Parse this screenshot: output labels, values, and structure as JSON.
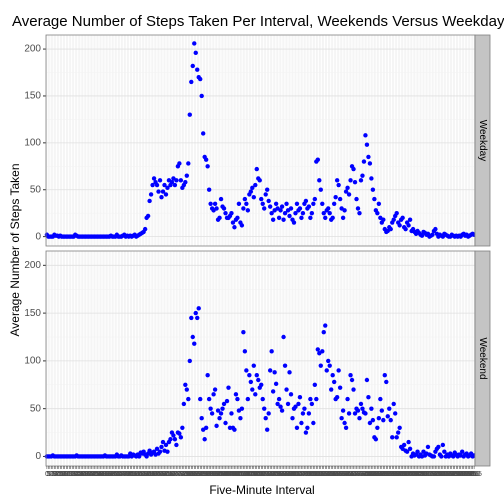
{
  "chart_data": {
    "type": "scatter",
    "title": "Average Number of Steps Taken Per Interval, Weekends Versus Weekdays",
    "x_label": "Five-Minute Interval",
    "y_label": "Average Number of Steps Taken",
    "categories": [
      0,
      5,
      10,
      15,
      20,
      25,
      30,
      35,
      40,
      45,
      50,
      55,
      100,
      105,
      110,
      115,
      120,
      125,
      130,
      135,
      140,
      145,
      150,
      155,
      200,
      205,
      210,
      215,
      220,
      225,
      230,
      235,
      240,
      245,
      250,
      255,
      300,
      305,
      310,
      315,
      320,
      325,
      330,
      335,
      340,
      345,
      350,
      355,
      400,
      405,
      410,
      415,
      420,
      425,
      430,
      435,
      440,
      445,
      450,
      455,
      500,
      505,
      510,
      515,
      520,
      525,
      530,
      535,
      540,
      545,
      550,
      555,
      600,
      605,
      610,
      615,
      620,
      625,
      630,
      635,
      640,
      645,
      650,
      655,
      700,
      705,
      710,
      715,
      720,
      725,
      730,
      735,
      740,
      745,
      750,
      755,
      800,
      805,
      810,
      815,
      820,
      825,
      830,
      835,
      840,
      845,
      850,
      855,
      900,
      905,
      910,
      915,
      920,
      925,
      930,
      935,
      940,
      945,
      950,
      955,
      1000,
      1005,
      1010,
      1015,
      1020,
      1025,
      1030,
      1035,
      1040,
      1045,
      1050,
      1055,
      1100,
      1105,
      1110,
      1115,
      1120,
      1125,
      1130,
      1135,
      1140,
      1145,
      1150,
      1155,
      1200,
      1205,
      1210,
      1215,
      1220,
      1225,
      1230,
      1235,
      1240,
      1245,
      1250,
      1255,
      1300,
      1305,
      1310,
      1315,
      1320,
      1325,
      1330,
      1335,
      1340,
      1345,
      1350,
      1355,
      1400,
      1405,
      1410,
      1415,
      1420,
      1425,
      1430,
      1435,
      1440,
      1445,
      1450,
      1455,
      1500,
      1505,
      1510,
      1515,
      1520,
      1525,
      1530,
      1535,
      1540,
      1545,
      1550,
      1555,
      1600,
      1605,
      1610,
      1615,
      1620,
      1625,
      1630,
      1635,
      1640,
      1645,
      1650,
      1655,
      1700,
      1705,
      1710,
      1715,
      1720,
      1725,
      1730,
      1735,
      1740,
      1745,
      1750,
      1755,
      1800,
      1805,
      1810,
      1815,
      1820,
      1825,
      1830,
      1835,
      1840,
      1845,
      1850,
      1855,
      1900,
      1905,
      1910,
      1915,
      1920,
      1925,
      1930,
      1935,
      1940,
      1945,
      1950,
      1955,
      2000,
      2005,
      2010,
      2015,
      2020,
      2025,
      2030,
      2035,
      2040,
      2045,
      2050,
      2055,
      2100,
      2105,
      2110,
      2115,
      2120,
      2125,
      2130,
      2135,
      2140,
      2145,
      2150,
      2155,
      2200,
      2205,
      2210,
      2215,
      2220,
      2225,
      2230,
      2235,
      2240,
      2245,
      2250,
      2255,
      2300,
      2305,
      2310,
      2315,
      2320,
      2325,
      2330,
      2335,
      2340,
      2345,
      2350,
      2355
    ],
    "series": [
      {
        "name": "Weekday",
        "color": "#0000ff",
        "values": [
          2,
          0,
          0,
          0,
          0,
          2,
          1,
          1,
          0,
          1,
          0,
          0,
          0,
          0,
          0,
          0,
          0,
          0,
          0,
          2,
          1,
          0,
          0,
          0,
          0,
          0,
          0,
          0,
          0,
          0,
          0,
          0,
          0,
          0,
          0,
          0,
          0,
          0,
          0,
          0,
          0,
          0,
          0,
          1,
          0,
          0,
          0,
          2,
          0,
          0,
          0,
          1,
          2,
          0,
          1,
          0,
          1,
          0,
          1,
          2,
          0,
          1,
          2,
          3,
          4,
          5,
          8,
          20,
          22,
          38,
          45,
          55,
          62,
          58,
          55,
          48,
          60,
          42,
          48,
          55,
          45,
          52,
          60,
          55,
          58,
          62,
          55,
          60,
          75,
          78,
          60,
          52,
          55,
          58,
          65,
          78,
          130,
          165,
          182,
          206,
          196,
          178,
          170,
          168,
          150,
          110,
          85,
          82,
          75,
          50,
          35,
          30,
          28,
          35,
          30,
          18,
          20,
          40,
          32,
          30,
          25,
          20,
          20,
          22,
          25,
          15,
          10,
          18,
          20,
          35,
          15,
          12,
          30,
          40,
          35,
          28,
          45,
          48,
          52,
          42,
          55,
          72,
          62,
          60,
          40,
          35,
          30,
          45,
          50,
          38,
          32,
          25,
          18,
          28,
          35,
          30,
          20,
          28,
          32,
          18,
          25,
          35,
          28,
          22,
          30,
          18,
          15,
          25,
          35,
          28,
          30,
          20,
          25,
          35,
          38,
          30,
          32,
          20,
          25,
          35,
          40,
          80,
          82,
          60,
          50,
          35,
          25,
          20,
          28,
          30,
          25,
          18,
          20,
          35,
          42,
          60,
          55,
          40,
          30,
          20,
          28,
          48,
          52,
          45,
          60,
          75,
          72,
          58,
          40,
          30,
          25,
          60,
          65,
          80,
          108,
          98,
          85,
          78,
          62,
          50,
          40,
          28,
          25,
          35,
          20,
          15,
          18,
          8,
          5,
          6,
          10,
          8,
          15,
          18,
          22,
          25,
          15,
          12,
          18,
          20,
          10,
          8,
          15,
          12,
          18,
          6,
          8,
          5,
          3,
          6,
          4,
          2,
          1,
          5,
          4,
          2,
          3,
          0,
          1,
          2,
          6,
          8,
          3,
          0,
          2,
          1,
          0,
          3,
          2,
          1,
          0,
          0,
          2,
          1,
          0,
          1,
          0,
          1,
          0,
          2,
          3,
          1,
          2,
          0,
          1,
          2,
          3,
          2
        ]
      },
      {
        "name": "Weekend",
        "color": "#0000ff",
        "values": [
          0,
          0,
          0,
          0,
          1,
          0,
          0,
          0,
          0,
          0,
          0,
          0,
          0,
          0,
          0,
          0,
          0,
          0,
          0,
          0,
          1,
          0,
          0,
          0,
          0,
          0,
          0,
          0,
          0,
          0,
          0,
          0,
          0,
          0,
          0,
          0,
          0,
          0,
          0,
          1,
          0,
          0,
          0,
          0,
          0,
          0,
          0,
          2,
          0,
          0,
          1,
          0,
          0,
          0,
          0,
          0,
          3,
          0,
          2,
          1,
          0,
          2,
          0,
          4,
          3,
          5,
          2,
          0,
          3,
          6,
          2,
          4,
          5,
          2,
          8,
          3,
          5,
          10,
          15,
          6,
          12,
          5,
          15,
          18,
          25,
          22,
          18,
          12,
          25,
          24,
          20,
          30,
          55,
          75,
          70,
          60,
          100,
          145,
          125,
          118,
          150,
          145,
          155,
          60,
          40,
          28,
          18,
          30,
          85,
          60,
          50,
          45,
          65,
          70,
          32,
          48,
          40,
          45,
          50,
          55,
          35,
          58,
          72,
          30,
          45,
          30,
          28,
          65,
          60,
          48,
          40,
          50,
          130,
          110,
          90,
          60,
          85,
          78,
          70,
          95,
          65,
          85,
          80,
          72,
          75,
          60,
          50,
          40,
          28,
          45,
          90,
          110,
          68,
          88,
          76,
          55,
          60,
          52,
          48,
          125,
          95,
          70,
          55,
          88,
          65,
          40,
          50,
          52,
          30,
          55,
          62,
          35,
          45,
          50,
          25,
          30,
          45,
          60,
          55,
          35,
          75,
          60,
          112,
          108,
          95,
          110,
          130,
          137,
          90,
          100,
          95,
          70,
          85,
          78,
          60,
          62,
          90,
          72,
          40,
          48,
          35,
          30,
          60,
          45,
          85,
          80,
          70,
          45,
          50,
          48,
          40,
          55,
          50,
          46,
          45,
          80,
          62,
          35,
          50,
          38,
          20,
          18,
          30,
          40,
          60,
          48,
          38,
          85,
          78,
          42,
          50,
          38,
          20,
          55,
          45,
          20,
          25,
          30,
          10,
          8,
          12,
          6,
          5,
          15,
          8,
          0,
          3,
          1,
          2,
          5,
          0,
          2,
          0,
          5,
          1,
          3,
          10,
          2,
          1,
          0,
          0,
          5,
          8,
          10,
          2,
          0,
          12,
          5,
          0,
          2,
          0,
          3,
          1,
          0,
          4,
          2,
          0,
          2,
          1,
          5,
          0,
          2,
          3,
          0,
          1,
          3,
          0,
          1
        ]
      }
    ],
    "ylim": [
      -10,
      215
    ],
    "yticks": [
      0,
      50,
      100,
      150,
      200
    ],
    "grid": true
  }
}
